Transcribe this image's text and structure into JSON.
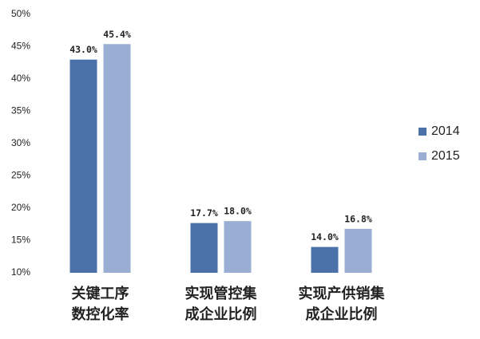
{
  "chart_data": {
    "type": "bar",
    "categories": [
      "关键工序\n数控化率",
      "实现管控集\n成企业比例",
      "实现产供销集\n成企业比例"
    ],
    "series": [
      {
        "name": "2014",
        "color": "#4a72a8",
        "values": [
          43.0,
          17.7,
          14.0
        ],
        "value_labels": [
          "43.0%",
          "17.7%",
          "14.0%"
        ]
      },
      {
        "name": "2015",
        "color": "#9aaed3",
        "values": [
          45.4,
          18.0,
          16.8
        ],
        "value_labels": [
          "45.4%",
          "18.0%",
          "16.8%"
        ]
      }
    ],
    "ylim": [
      10,
      50
    ],
    "yticks": [
      {
        "value": 10,
        "label": "10%"
      },
      {
        "value": 15,
        "label": "15%"
      },
      {
        "value": 20,
        "label": "20%"
      },
      {
        "value": 25,
        "label": "25%"
      },
      {
        "value": 30,
        "label": "30%"
      },
      {
        "value": 35,
        "label": "35%"
      },
      {
        "value": 40,
        "label": "40%"
      },
      {
        "value": 45,
        "label": "45%"
      },
      {
        "value": 50,
        "label": "50%"
      }
    ],
    "grid": false,
    "legend": "right"
  }
}
